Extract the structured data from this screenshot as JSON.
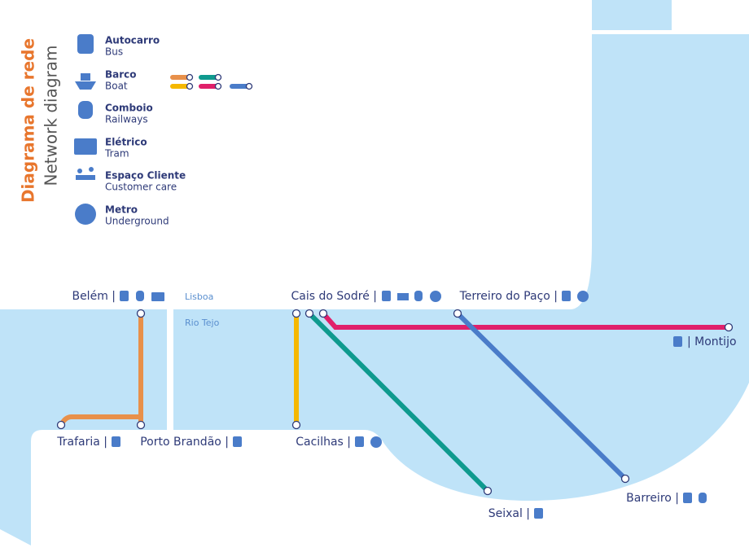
{
  "header": {
    "title": "Diagrama de rede",
    "subtitle": "Network diagram"
  },
  "legend": {
    "items": [
      {
        "pt": "Autocarro",
        "en": "Bus"
      },
      {
        "pt": "Barco",
        "en": "Boat"
      },
      {
        "pt": "Comboio",
        "en": "Railways"
      },
      {
        "pt": "Elétrico",
        "en": "Tram"
      },
      {
        "pt": "Espaço Cliente",
        "en": "Customer care"
      },
      {
        "pt": "Metro",
        "en": "Underground"
      }
    ]
  },
  "places": {
    "city": "Lisboa",
    "river": "Rio Tejo"
  },
  "stations": [
    {
      "label": "Belém |"
    },
    {
      "label": "Cais do Sodré |"
    },
    {
      "label": "Terreiro do Paço |"
    },
    {
      "label": "| Montijo"
    },
    {
      "label": "Trafaria |"
    },
    {
      "label": "Porto Brandão |"
    },
    {
      "label": "Cacilhas |"
    },
    {
      "label": "Seixal |"
    },
    {
      "label": "Barreiro |"
    }
  ]
}
